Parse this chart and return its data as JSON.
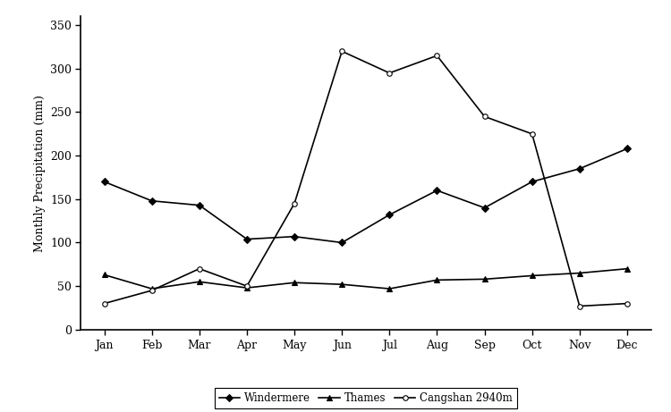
{
  "months": [
    "Jan",
    "Feb",
    "Mar",
    "Apr",
    "May",
    "Jun",
    "Jul",
    "Aug",
    "Sep",
    "Oct",
    "Nov",
    "Dec"
  ],
  "windermere": [
    170,
    148,
    143,
    104,
    107,
    100,
    132,
    160,
    140,
    170,
    185,
    208
  ],
  "thames": [
    63,
    47,
    55,
    48,
    54,
    52,
    47,
    57,
    58,
    62,
    65,
    70
  ],
  "cangshan": [
    30,
    45,
    70,
    50,
    145,
    320,
    295,
    315,
    245,
    225,
    27,
    30
  ],
  "ylabel": "Monthly Precipitation (mm)",
  "ylim": [
    0,
    360
  ],
  "yticks": [
    0,
    50,
    100,
    150,
    200,
    250,
    300,
    350
  ],
  "legend_labels": [
    "Windermere",
    "Thames",
    "Cangshan 2940m"
  ],
  "line_color": "#000000",
  "marker_windermere": "D",
  "marker_thames": "^",
  "marker_cangshan": "o",
  "linewidth": 1.2,
  "markersize": 4,
  "background_color": "#ffffff",
  "axis_fontsize": 9,
  "tick_fontsize": 9,
  "legend_fontsize": 8.5
}
